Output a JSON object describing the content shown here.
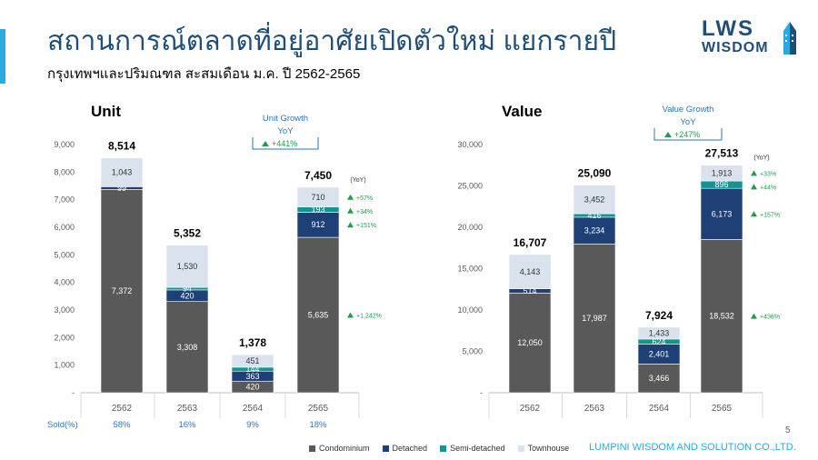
{
  "slide": {
    "title": "สถานการณ์ตลาดที่อยู่อาศัยเปิดตัวใหม่ แยกรายปี",
    "subtitle": "กรุงเทพฯและปริมณฑล สะสมเดือน ม.ค. ปี 2562-2565",
    "logo_top": "LWS",
    "logo_bottom": "WISDOM",
    "footer": "LUMPINI WISDOM AND SOLUTION CO.,LTD.",
    "page_number": "5"
  },
  "legend": [
    {
      "name": "Condominium",
      "color": "#595959"
    },
    {
      "name": "Detached",
      "color": "#1f3f77"
    },
    {
      "name": "Semi-detached",
      "color": "#13948f"
    },
    {
      "name": "Townhouse",
      "color": "#d9e2ed"
    }
  ],
  "chart_data": [
    {
      "type": "bar",
      "stacked": true,
      "title": "Unit",
      "categories": [
        "2562",
        "2563",
        "2564",
        "2565"
      ],
      "ylim": [
        0,
        9000
      ],
      "yticks": [
        "-",
        "1,000",
        "2,000",
        "3,000",
        "4,000",
        "5,000",
        "6,000",
        "7,000",
        "8,000",
        "9,000"
      ],
      "series": [
        {
          "name": "Condominium",
          "values": [
            7372,
            3308,
            420,
            5635
          ],
          "labels": [
            "7,372",
            "3,308",
            "420",
            "5,635"
          ]
        },
        {
          "name": "Detached",
          "values": [
            99,
            420,
            363,
            912
          ],
          "labels": [
            "99",
            "420",
            "363",
            "912"
          ]
        },
        {
          "name": "Semi-detached",
          "values": [
            0,
            94,
            144,
            193
          ],
          "labels": [
            "",
            "94",
            "144",
            "193"
          ]
        },
        {
          "name": "Townhouse",
          "values": [
            1043,
            1530,
            451,
            710
          ],
          "labels": [
            "1,043",
            "1,530",
            "451",
            "710"
          ]
        }
      ],
      "totals": [
        "8,514",
        "5,352",
        "1,378",
        "7,450"
      ],
      "growth_box": {
        "title_line1": "Unit Growth",
        "title_line2": "YoY",
        "value": "+441%"
      },
      "yoy_label": "(YoY)",
      "yoy": [
        "+57%",
        "+34%",
        "+151%",
        "+1,242%"
      ],
      "sold_label": "Sold(%)",
      "sold": [
        "58%",
        "16%",
        "9%",
        "18%"
      ]
    },
    {
      "type": "bar",
      "stacked": true,
      "title": "Value",
      "categories": [
        "2562",
        "2563",
        "2564",
        "2565"
      ],
      "ylim": [
        0,
        30000
      ],
      "yticks": [
        "-",
        "5,000",
        "10,000",
        "15,000",
        "20,000",
        "25,000",
        "30,000"
      ],
      "series": [
        {
          "name": "Condominium",
          "values": [
            12050,
            17987,
            3466,
            18532
          ],
          "labels": [
            "12,050",
            "17,987",
            "3,466",
            "18,532"
          ]
        },
        {
          "name": "Detached",
          "values": [
            514,
            3234,
            2401,
            6173
          ],
          "labels": [
            "514",
            "3,234",
            "2,401",
            "6,173"
          ]
        },
        {
          "name": "Semi-detached",
          "values": [
            0,
            416,
            624,
            896
          ],
          "labels": [
            "",
            "416",
            "624",
            "896"
          ]
        },
        {
          "name": "Townhouse",
          "values": [
            4143,
            3452,
            1433,
            1913
          ],
          "labels": [
            "4,143",
            "3,452",
            "1,433",
            "1,913"
          ]
        }
      ],
      "totals": [
        "16,707",
        "25,090",
        "7,924",
        "27,513"
      ],
      "growth_box": {
        "title_line1": "Value Growth",
        "title_line2": "YoY",
        "value": "+247%"
      },
      "yoy_label": "(YoY)",
      "yoy": [
        "+33%",
        "+44%",
        "+157%",
        "+436%"
      ]
    }
  ]
}
